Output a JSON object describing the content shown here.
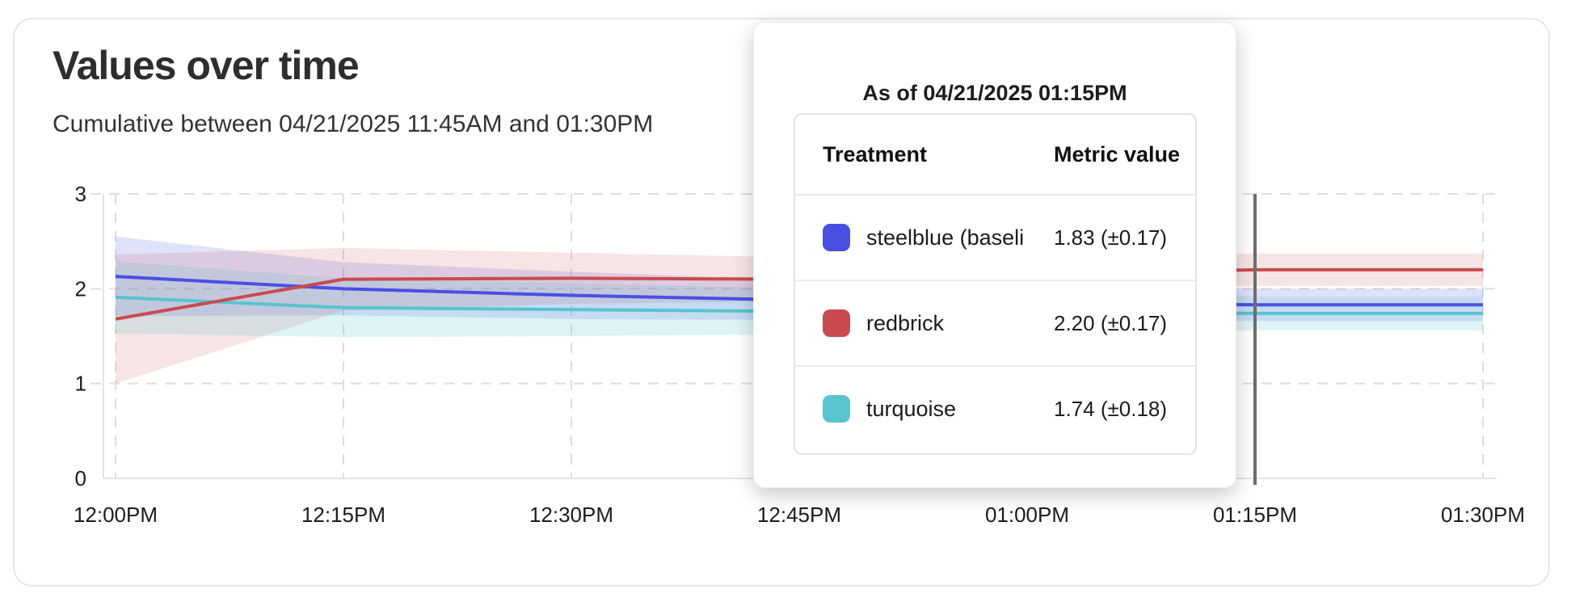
{
  "card": {
    "title": "Values over time",
    "subtitle": "Cumulative between 04/21/2025 11:45AM and 01:30PM"
  },
  "chart_data": {
    "type": "line",
    "title": "Values over time",
    "xlabel": "",
    "ylabel": "",
    "x_ticks": [
      "12:00PM",
      "12:15PM",
      "12:30PM",
      "12:45PM",
      "01:00PM",
      "01:15PM",
      "01:30PM"
    ],
    "y_ticks": [
      0,
      1,
      2,
      3
    ],
    "ylim": [
      0,
      3
    ],
    "grid": "dashed",
    "legend_position": "none",
    "series": [
      {
        "name": "steelblue (baseline)",
        "color": "#4A4FE4",
        "values": [
          2.13,
          2.0,
          1.93,
          1.88,
          1.85,
          1.83,
          1.83
        ],
        "band_halfwidth": [
          0.42,
          0.28,
          0.25,
          0.21,
          0.19,
          0.17,
          0.17
        ]
      },
      {
        "name": "redbrick",
        "color": "#C94B4F",
        "values": [
          1.68,
          2.1,
          2.11,
          2.1,
          2.15,
          2.2,
          2.2
        ],
        "band_halfwidth": [
          0.68,
          0.33,
          0.27,
          0.23,
          0.2,
          0.17,
          0.17
        ]
      },
      {
        "name": "turquoise",
        "color": "#58C4CF",
        "values": [
          1.91,
          1.8,
          1.78,
          1.76,
          1.75,
          1.74,
          1.74
        ],
        "band_halfwidth": [
          0.38,
          0.31,
          0.28,
          0.24,
          0.21,
          0.18,
          0.18
        ]
      }
    ],
    "hover": {
      "x_label": "01:15PM",
      "line_color": "#6E6E6E"
    }
  },
  "tooltip": {
    "title": "As of 04/21/2025 01:15PM",
    "columns": {
      "treatment": "Treatment",
      "metric": "Metric value"
    },
    "rows": [
      {
        "label": "steelblue  (baseli",
        "color": "#4A4FE4",
        "value": "1.83 (±0.17)"
      },
      {
        "label": "redbrick",
        "color": "#C94B4F",
        "value": "2.20 (±0.17)"
      },
      {
        "label": "turquoise",
        "color": "#58C4CF",
        "value": "1.74 (±0.18)"
      }
    ]
  }
}
